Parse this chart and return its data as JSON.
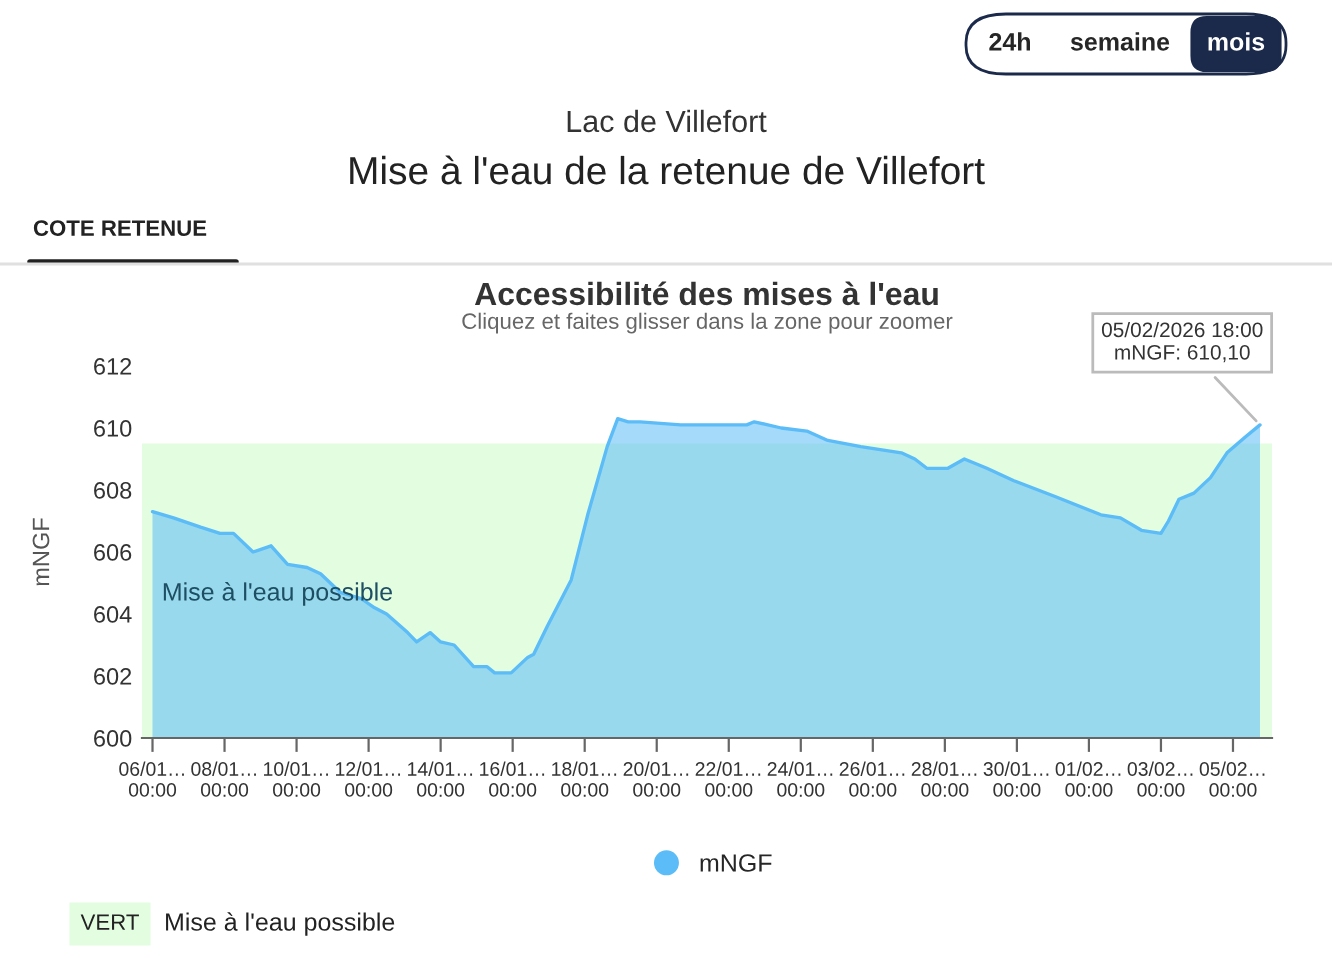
{
  "chart_data": {
    "type": "area",
    "title": "Accessibilité des mises à l'eau",
    "subtitle": "Cliquez et faites glisser dans la zone pour zoomer",
    "ylabel": "mNGF",
    "annotations": [
      "24h",
      "semaine",
      "mois",
      "Lac de Villefort",
      "Mise à l'eau de la retenue de Villefort",
      "COTE RETENUE",
      "VERT",
      "Mise à l'eau possible",
      {
        "text": "05/02/2026 18:00\nmNGF: 610,10",
        "x": "2026-02-05T18:00",
        "y": 610.1
      }
    ],
    "series": [
      {
        "name": "mNGF",
        "color": "#5bbcf7",
        "x": [
          "2026-01-06T00:00",
          "2026-01-06T14:00",
          "2026-01-07T08:00",
          "2026-01-07T21:00",
          "2026-01-08T06:00",
          "2026-01-08T19:00",
          "2026-01-09T07:00",
          "2026-01-09T18:00",
          "2026-01-10T07:00",
          "2026-01-10T16:00",
          "2026-01-11T05:00",
          "2026-01-11T19:00",
          "2026-01-12T04:00",
          "2026-01-12T12:00",
          "2026-01-13T02:00",
          "2026-01-13T08:00",
          "2026-01-13T17:00",
          "2026-01-14T00:00",
          "2026-01-14T09:00",
          "2026-01-14T22:00",
          "2026-01-15T07:00",
          "2026-01-15T12:00",
          "2026-01-15T18:00",
          "2026-01-15T23:00",
          "2026-01-16T10:00",
          "2026-01-16T14:00",
          "2026-01-16T23:00",
          "2026-01-17T15:00",
          "2026-01-18T02:00",
          "2026-01-18T15:00",
          "2026-01-18T22:00",
          "2026-01-19T05:00",
          "2026-01-19T13:00",
          "2026-01-20T16:00",
          "2026-01-21T10:00",
          "2026-01-22T12:00",
          "2026-01-22T17:00",
          "2026-01-23T11:00",
          "2026-01-24T04:00",
          "2026-01-24T18:00",
          "2026-01-25T16:00",
          "2026-01-26T19:00",
          "2026-01-27T04:00",
          "2026-01-27T12:00",
          "2026-01-28T02:00",
          "2026-01-28T13:00",
          "2026-01-29T04:00",
          "2026-01-29T22:00",
          "2026-01-31T01:00",
          "2026-02-01T08:00",
          "2026-02-01T21:00",
          "2026-02-02T11:00",
          "2026-02-03T00:00",
          "2026-02-03T05:00",
          "2026-02-03T12:00",
          "2026-02-03T22:00",
          "2026-02-04T09:00",
          "2026-02-04T20:00",
          "2026-02-05T08:00",
          "2026-02-05T18:00"
        ],
        "values": [
          607.3,
          607.1,
          606.8,
          606.6,
          606.6,
          606.0,
          606.2,
          605.6,
          605.5,
          605.3,
          604.7,
          604.5,
          604.2,
          604.0,
          603.4,
          603.1,
          603.4,
          603.1,
          603.0,
          602.3,
          602.3,
          602.1,
          602.1,
          602.1,
          602.6,
          602.7,
          603.6,
          605.1,
          607.2,
          609.4,
          610.3,
          610.2,
          610.2,
          610.1,
          610.1,
          610.1,
          610.2,
          610.0,
          609.9,
          609.6,
          609.4,
          609.2,
          609.0,
          608.7,
          608.7,
          609.0,
          608.7,
          608.3,
          607.8,
          607.2,
          607.1,
          606.7,
          606.6,
          607.0,
          607.7,
          607.9,
          608.4,
          609.2,
          609.7,
          610.1
        ]
      }
    ],
    "bands": [
      {
        "axis": "y",
        "from": 600,
        "to": 609.5,
        "label": "Mise à l'eau possible",
        "color": "#e3fde0"
      }
    ],
    "xlim": [
      "2026-01-05T17:00",
      "2026-02-06T02:00"
    ],
    "xticks": [
      {
        "value": "2026-01-06T00:00",
        "label": "06/01…\n00:00"
      },
      {
        "value": "2026-01-08T00:00",
        "label": "08/01…\n00:00"
      },
      {
        "value": "2026-01-10T00:00",
        "label": "10/01…\n00:00"
      },
      {
        "value": "2026-01-12T00:00",
        "label": "12/01…\n00:00"
      },
      {
        "value": "2026-01-14T00:00",
        "label": "14/01…\n00:00"
      },
      {
        "value": "2026-01-16T00:00",
        "label": "16/01…\n00:00"
      },
      {
        "value": "2026-01-18T00:00",
        "label": "18/01…\n00:00"
      },
      {
        "value": "2026-01-20T00:00",
        "label": "20/01…\n00:00"
      },
      {
        "value": "2026-01-22T00:00",
        "label": "22/01…\n00:00"
      },
      {
        "value": "2026-01-24T00:00",
        "label": "24/01…\n00:00"
      },
      {
        "value": "2026-01-26T00:00",
        "label": "26/01…\n00:00"
      },
      {
        "value": "2026-01-28T00:00",
        "label": "28/01…\n00:00"
      },
      {
        "value": "2026-01-30T00:00",
        "label": "30/01…\n00:00"
      },
      {
        "value": "2026-02-01T00:00",
        "label": "01/02…\n00:00"
      },
      {
        "value": "2026-02-03T00:00",
        "label": "03/02…\n00:00"
      },
      {
        "value": "2026-02-05T00:00",
        "label": "05/02…\n00:00"
      }
    ],
    "ylim": [
      600,
      612
    ],
    "yticks": [
      600,
      602,
      604,
      606,
      608,
      610,
      612
    ],
    "grid": false,
    "legend": "bottom",
    "marker": "none"
  }
}
